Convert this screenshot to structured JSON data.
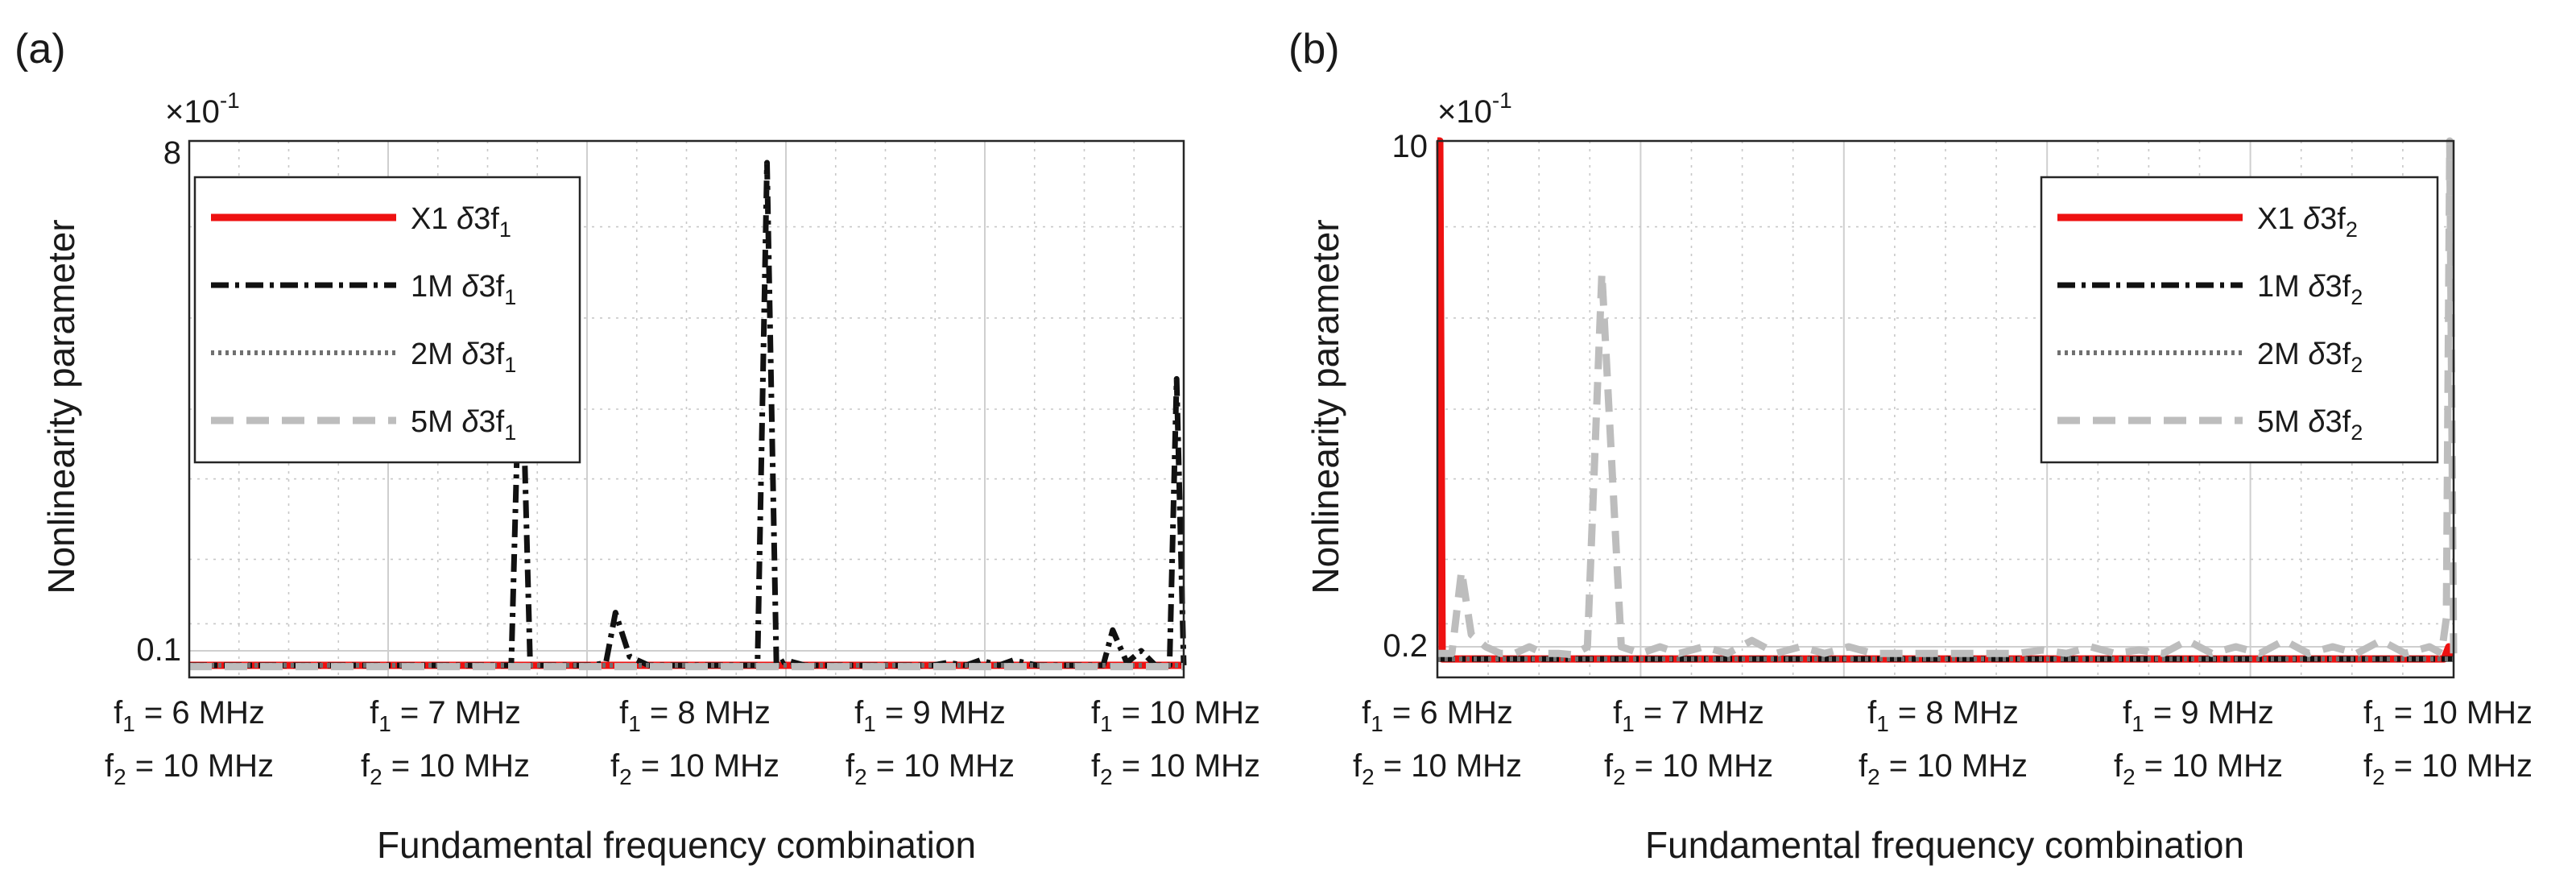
{
  "figure": {
    "shared_xlabel": "Fundamental frequency combination",
    "shared_ylabel": "Nonlinearity parameter",
    "tick_labels": [
      {
        "f1": "6 MHz",
        "f2": "10 MHz"
      },
      {
        "f1": "7 MHz",
        "f2": "10 MHz"
      },
      {
        "f1": "8 MHz",
        "f2": "10 MHz"
      },
      {
        "f1": "9 MHz",
        "f2": "10 MHz"
      },
      {
        "f1": "10 MHz",
        "f2": "10 MHz"
      }
    ],
    "colors": {
      "x1": "#ee1111",
      "m1": "#111111",
      "m2": "#707070",
      "m5": "#bdbdbd",
      "grid": "#d0d0d0"
    }
  },
  "chart_data": [
    {
      "panel": "(a)",
      "type": "line",
      "title": "",
      "xlabel": "Fundamental frequency combination",
      "ylabel": "Nonlinearity parameter",
      "exponent_label": "×10",
      "exponent_power": "-1",
      "y_scale": "log",
      "ylim": [
        0.085,
        8.3
      ],
      "y_ticks": [
        0.1,
        8
      ],
      "y_tick_labels": [
        "0.1",
        "8"
      ],
      "xlim": [
        0,
        21
      ],
      "legend_position": "top-left",
      "legend": [
        {
          "name": "X1",
          "symbol": "δ3f",
          "sub": "1"
        },
        {
          "name": "1M",
          "symbol": "δ3f",
          "sub": "1"
        },
        {
          "name": "2M",
          "symbol": "δ3f",
          "sub": "1"
        },
        {
          "name": "5M",
          "symbol": "δ3f",
          "sub": "1"
        }
      ],
      "series": [
        {
          "name": "X1 δ3f1",
          "x": [
            0,
            21
          ],
          "values": [
            0.088,
            0.088
          ]
        },
        {
          "name": "1M δ3f1",
          "x": [
            0,
            6.5,
            6.8,
            7.0,
            7.2,
            7.5,
            8,
            8.5,
            8.8,
            9.0,
            9.3,
            9.7,
            10,
            11.9,
            12.0,
            12.2,
            12.4,
            12.6,
            13.0,
            13.5,
            13.9,
            14,
            14.5,
            15.7,
            16.0,
            16.4,
            16.7,
            17.1,
            17.4,
            17.9,
            18.0,
            18.4,
            19.3,
            19.5,
            19.8,
            20.1,
            20.4,
            20.7,
            20.85,
            21.0
          ],
          "values": [
            0.088,
            0.088,
            0.088,
            2.0,
            0.088,
            0.088,
            0.088,
            0.088,
            0.09,
            0.14,
            0.095,
            0.088,
            0.088,
            0.088,
            0.088,
            7.4,
            0.088,
            0.092,
            0.088,
            0.088,
            0.088,
            0.088,
            0.088,
            0.088,
            0.09,
            0.088,
            0.092,
            0.088,
            0.092,
            0.088,
            0.088,
            0.088,
            0.088,
            0.12,
            0.09,
            0.1,
            0.088,
            0.088,
            1.1,
            0.088
          ]
        },
        {
          "name": "2M δ3f1",
          "x": [
            0,
            21
          ],
          "values": [
            0.088,
            0.088
          ]
        },
        {
          "name": "5M δ3f1",
          "x": [
            0,
            21
          ],
          "values": [
            0.087,
            0.087
          ]
        }
      ]
    },
    {
      "panel": "(b)",
      "type": "line",
      "title": "",
      "xlabel": "Fundamental frequency combination",
      "ylabel": "Nonlinearity parameter",
      "exponent_label": "×10",
      "exponent_power": "-1",
      "y_scale": "log",
      "ylim": [
        0.18,
        10
      ],
      "y_ticks": [
        0.2,
        10
      ],
      "y_tick_labels": [
        "0.2",
        "10"
      ],
      "xlim": [
        0,
        21
      ],
      "legend_position": "top-right",
      "legend": [
        {
          "name": "X1",
          "symbol": "δ3f",
          "sub": "2"
        },
        {
          "name": "1M",
          "symbol": "δ3f",
          "sub": "2"
        },
        {
          "name": "2M",
          "symbol": "δ3f",
          "sub": "2"
        },
        {
          "name": "5M",
          "symbol": "δ3f",
          "sub": "2"
        }
      ],
      "series": [
        {
          "name": "X1 δ3f2",
          "x": [
            0,
            0.05,
            0.1,
            0.2,
            20.8,
            20.9,
            20.95,
            21.0
          ],
          "values": [
            10,
            10,
            0.182,
            0.182,
            0.182,
            0.2,
            0.19,
            0.19
          ]
        },
        {
          "name": "1M δ3f2",
          "x": [
            0,
            21
          ],
          "values": [
            0.182,
            0.182
          ]
        },
        {
          "name": "2M δ3f2",
          "x": [
            0,
            21
          ],
          "values": [
            0.182,
            0.182
          ]
        },
        {
          "name": "5M δ3f2",
          "x": [
            0,
            0.3,
            0.5,
            0.7,
            1.0,
            1.3,
            1.6,
            1.9,
            2.2,
            2.5,
            2.8,
            3.1,
            3.4,
            3.8,
            4.2,
            4.6,
            5.0,
            5.5,
            6.0,
            6.5,
            7.0,
            7.5,
            8.0,
            8.5,
            9.0,
            9.5,
            10.0,
            10.5,
            11.0,
            11.5,
            12.0,
            12.5,
            13.0,
            13.5,
            14.0,
            14.5,
            15.0,
            15.5,
            16.0,
            16.5,
            17.0,
            17.5,
            18.0,
            18.5,
            19.0,
            19.5,
            20.0,
            20.5,
            20.75,
            20.85,
            20.92,
            21.0
          ],
          "values": [
            0.19,
            0.19,
            0.36,
            0.22,
            0.2,
            0.19,
            0.19,
            0.2,
            0.19,
            0.19,
            0.188,
            0.2,
            3.6,
            0.2,
            0.19,
            0.2,
            0.19,
            0.2,
            0.19,
            0.21,
            0.19,
            0.2,
            0.19,
            0.2,
            0.19,
            0.19,
            0.19,
            0.19,
            0.19,
            0.19,
            0.19,
            0.195,
            0.19,
            0.2,
            0.19,
            0.195,
            0.19,
            0.21,
            0.19,
            0.2,
            0.19,
            0.21,
            0.19,
            0.2,
            0.19,
            0.21,
            0.19,
            0.2,
            0.19,
            0.25,
            10,
            0.19
          ]
        }
      ]
    }
  ]
}
